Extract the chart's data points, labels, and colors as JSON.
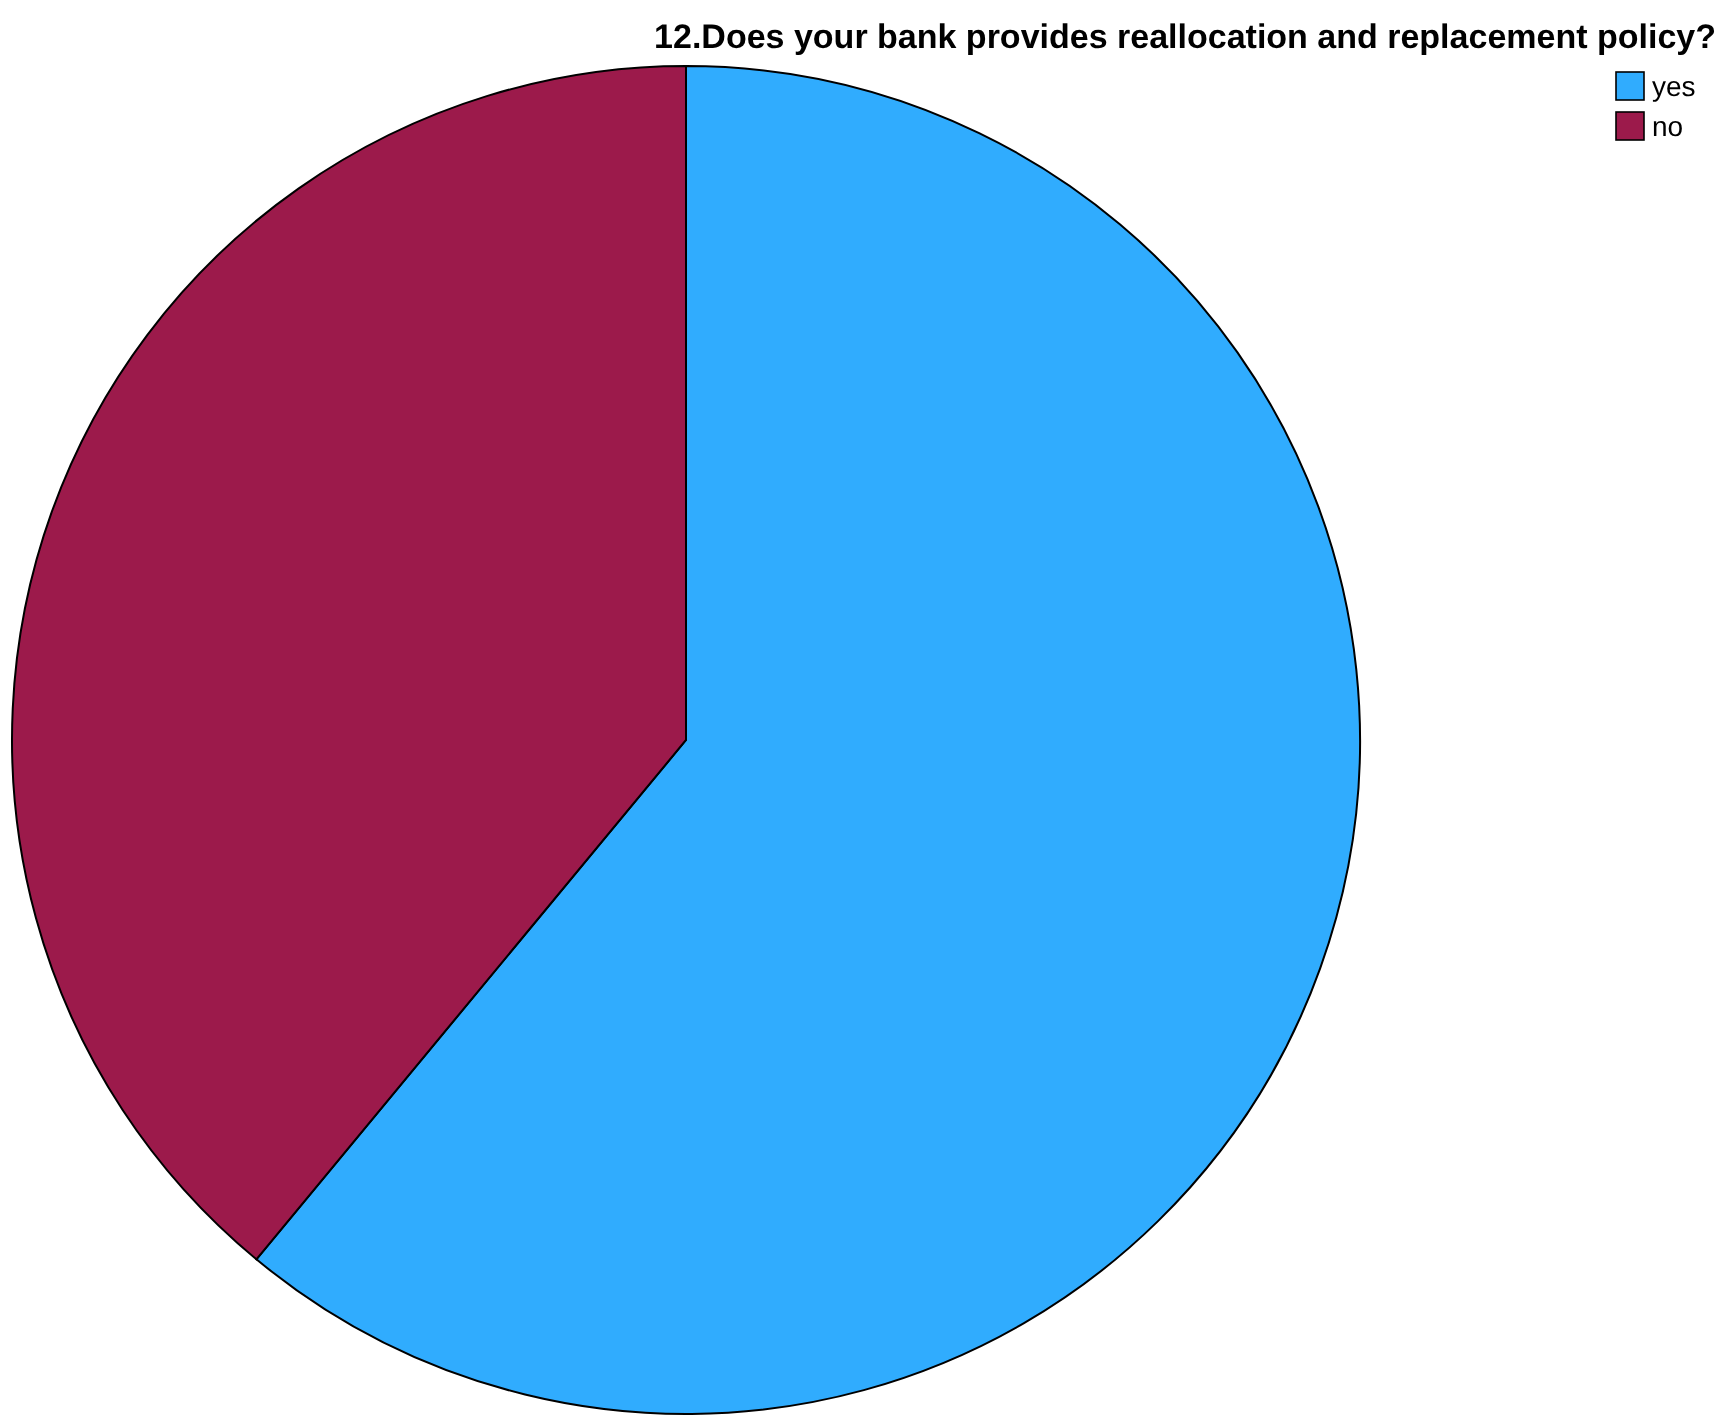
{
  "chart_data": {
    "type": "pie",
    "title": "12.Does your bank provides reallocation and replacement policy?",
    "categories": [
      "yes",
      "no"
    ],
    "values": [
      61,
      39
    ],
    "colors": [
      "#30acfe",
      "#9c1a4b"
    ],
    "legend": "top right"
  }
}
